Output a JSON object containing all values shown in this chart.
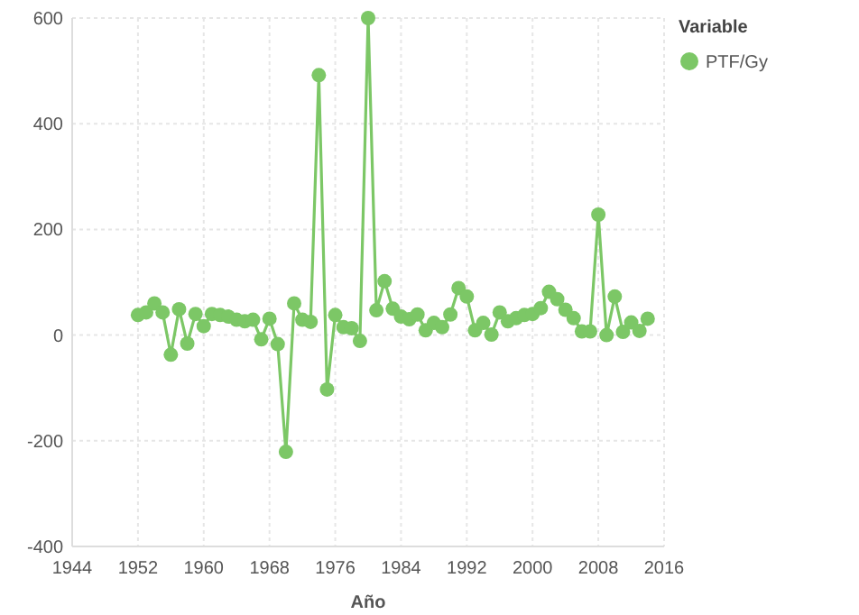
{
  "chart_data": {
    "type": "line",
    "xlabel": "Año",
    "legend_title": "Variable",
    "legend": "top right",
    "grid": true,
    "marker": "circle",
    "line_style": "solid",
    "x": [
      1952,
      1953,
      1954,
      1955,
      1956,
      1957,
      1958,
      1959,
      1960,
      1961,
      1962,
      1963,
      1964,
      1965,
      1966,
      1967,
      1968,
      1969,
      1970,
      1971,
      1972,
      1973,
      1974,
      1975,
      1976,
      1977,
      1978,
      1979,
      1980,
      1981,
      1982,
      1983,
      1984,
      1985,
      1986,
      1987,
      1988,
      1989,
      1990,
      1991,
      1992,
      1993,
      1994,
      1995,
      1996,
      1997,
      1998,
      1999,
      2000,
      2001,
      2002,
      2003,
      2004,
      2005,
      2006,
      2007,
      2008,
      2009,
      2010,
      2011,
      2012,
      2013,
      2014
    ],
    "series": [
      {
        "name": "PTF/Gy",
        "color": "#7cc766",
        "values": [
          38,
          43,
          60,
          43,
          -37,
          49,
          -16,
          40,
          17,
          40,
          38,
          35,
          29,
          26,
          29,
          -8,
          31,
          -17,
          -221,
          60,
          29,
          25,
          492,
          -103,
          38,
          15,
          13,
          -11,
          600,
          47,
          102,
          50,
          35,
          30,
          39,
          9,
          23,
          15,
          39,
          89,
          73,
          9,
          23,
          1,
          43,
          26,
          32,
          38,
          40,
          51,
          82,
          68,
          48,
          32,
          7,
          7,
          228,
          0,
          73,
          6,
          24,
          8,
          31
        ]
      }
    ],
    "xlim": [
      1944,
      2016
    ],
    "xticks": [
      1944,
      1952,
      1960,
      1968,
      1976,
      1984,
      1992,
      2000,
      2008,
      2016
    ],
    "ylim": [
      -400,
      600
    ],
    "yticks": [
      -400,
      -200,
      0,
      200,
      400,
      600
    ]
  }
}
